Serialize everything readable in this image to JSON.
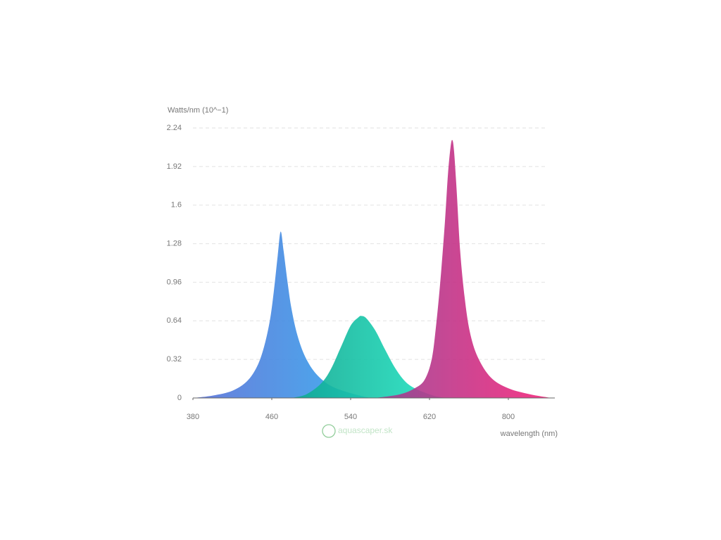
{
  "chart_data": {
    "type": "area",
    "y_label": "Watts/nm (10^−1)",
    "x_label": "wavelength (nm)",
    "watermark": "aquascaper.sk",
    "xlim": [
      380,
      899
    ],
    "xticks": [
      380,
      460,
      540,
      620,
      800
    ],
    "ylim": [
      0,
      2.24
    ],
    "yticks": [
      0,
      0.32,
      0.64,
      0.96,
      1.28,
      1.6,
      1.92,
      2.24
    ],
    "grid": true,
    "series": [
      {
        "color": "#4f8ee0",
        "x": [
          380,
          400,
          420,
          435,
          445,
          452,
          458,
          462,
          466,
          469,
          472,
          476,
          480,
          486,
          494,
          505,
          520,
          540,
          560
        ],
        "values": [
          0,
          0.02,
          0.06,
          0.14,
          0.26,
          0.42,
          0.64,
          0.88,
          1.18,
          1.38,
          1.22,
          0.96,
          0.74,
          0.52,
          0.34,
          0.2,
          0.1,
          0.04,
          0
        ]
      },
      {
        "color": "#12cba8",
        "x": [
          480,
          495,
          510,
          520,
          530,
          540,
          548,
          551,
          556,
          565,
          575,
          585,
          595,
          605,
          620,
          640,
          660
        ],
        "values": [
          0,
          0.03,
          0.12,
          0.24,
          0.42,
          0.6,
          0.67,
          0.68,
          0.66,
          0.56,
          0.4,
          0.25,
          0.14,
          0.08,
          0.03,
          0.01,
          0
        ]
      },
      {
        "color": "#d8307f",
        "x": [
          565,
          590,
          605,
          615,
          625,
          635,
          645,
          655,
          662,
          668,
          672,
          676,
          682,
          690,
          700,
          712,
          730,
          760,
          800,
          850,
          899
        ],
        "values": [
          0,
          0.03,
          0.08,
          0.15,
          0.32,
          0.6,
          0.98,
          1.45,
          1.85,
          2.08,
          2.14,
          2.05,
          1.72,
          1.22,
          0.84,
          0.55,
          0.34,
          0.17,
          0.08,
          0.03,
          0
        ]
      }
    ]
  }
}
